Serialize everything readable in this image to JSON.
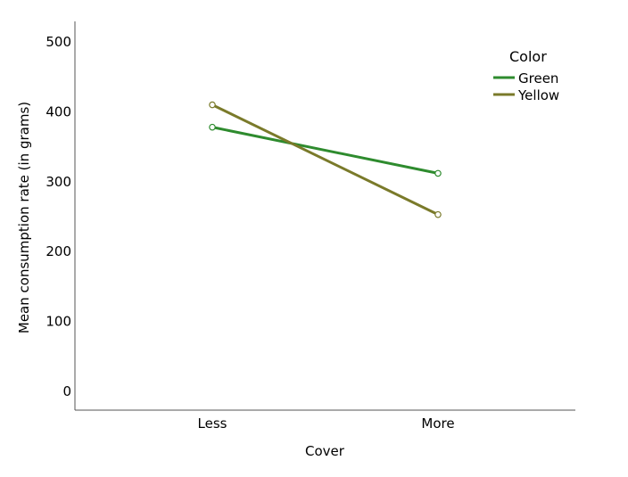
{
  "chart_data": {
    "type": "line",
    "title": "",
    "xlabel": "Cover",
    "ylabel": "Mean consumption rate (in grams)",
    "categories": [
      "Less",
      "More"
    ],
    "ylim": [
      0,
      500
    ],
    "yticks": [
      0,
      100,
      200,
      300,
      400,
      500
    ],
    "ytick_labels": [
      "0",
      "100",
      "200",
      "300",
      "400",
      "500"
    ],
    "grid": false,
    "legend": {
      "title": "Color",
      "placement": "top-right"
    },
    "series": [
      {
        "name": "Green",
        "values": [
          378,
          312
        ],
        "color": "#2e8b2e"
      },
      {
        "name": "Yellow",
        "values": [
          410,
          253
        ],
        "color": "#7a7a2a"
      }
    ]
  }
}
